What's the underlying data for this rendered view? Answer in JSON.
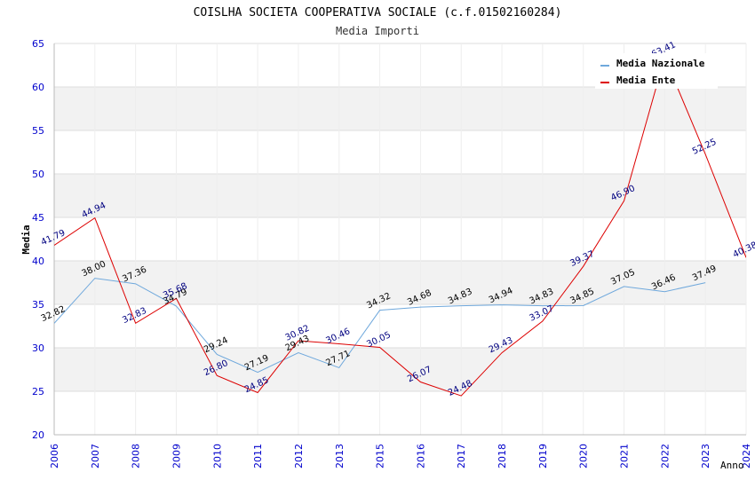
{
  "chart_data": {
    "type": "line",
    "title": "COISLHA SOCIETA COOPERATIVA SOCIALE (c.f.01502160284)",
    "subtitle": "Media Importi",
    "xlabel": "Anno",
    "ylabel": "Media",
    "ylim": [
      20,
      65
    ],
    "yticks": [
      "20",
      "25",
      "30",
      "35",
      "40",
      "45",
      "50",
      "55",
      "60",
      "65"
    ],
    "categories": [
      "2006",
      "2007",
      "2008",
      "2009",
      "2010",
      "2011",
      "2012",
      "2013",
      "2015",
      "2016",
      "2017",
      "2018",
      "2019",
      "2020",
      "2021",
      "2022",
      "2023",
      "2024"
    ],
    "series": [
      {
        "name": "Media Nazionale",
        "color": "#6fa8dc",
        "values": [
          32.82,
          38.0,
          37.36,
          34.79,
          29.24,
          27.19,
          29.43,
          27.71,
          34.32,
          34.68,
          34.83,
          34.94,
          34.83,
          34.85,
          37.05,
          36.46,
          37.49,
          null
        ],
        "labels": [
          "32.82",
          "38.00",
          "37.36",
          "34.79",
          "29.24",
          "27.19",
          "29.43",
          "27.71",
          "34.32",
          "34.68",
          "34.83",
          "34.94",
          "34.83",
          "34.85",
          "37.05",
          "36.46",
          "37.49",
          null
        ]
      },
      {
        "name": "Media Ente",
        "color": "#dd0000",
        "values": [
          41.79,
          44.94,
          32.83,
          35.68,
          26.8,
          24.85,
          30.82,
          30.46,
          30.05,
          26.07,
          24.48,
          29.43,
          33.07,
          39.37,
          46.9,
          63.41,
          52.25,
          40.38
        ],
        "labels": [
          "41.79",
          "44.94",
          "32.83",
          "35.68",
          "26.80",
          "24.85",
          "30.82",
          "30.46",
          "30.05",
          "26.07",
          "24.48",
          "29.43",
          "33.07",
          "39.37",
          "46.90",
          "63.41",
          "52.25",
          "40.38"
        ]
      }
    ],
    "legend": "top-right",
    "grid": true
  }
}
